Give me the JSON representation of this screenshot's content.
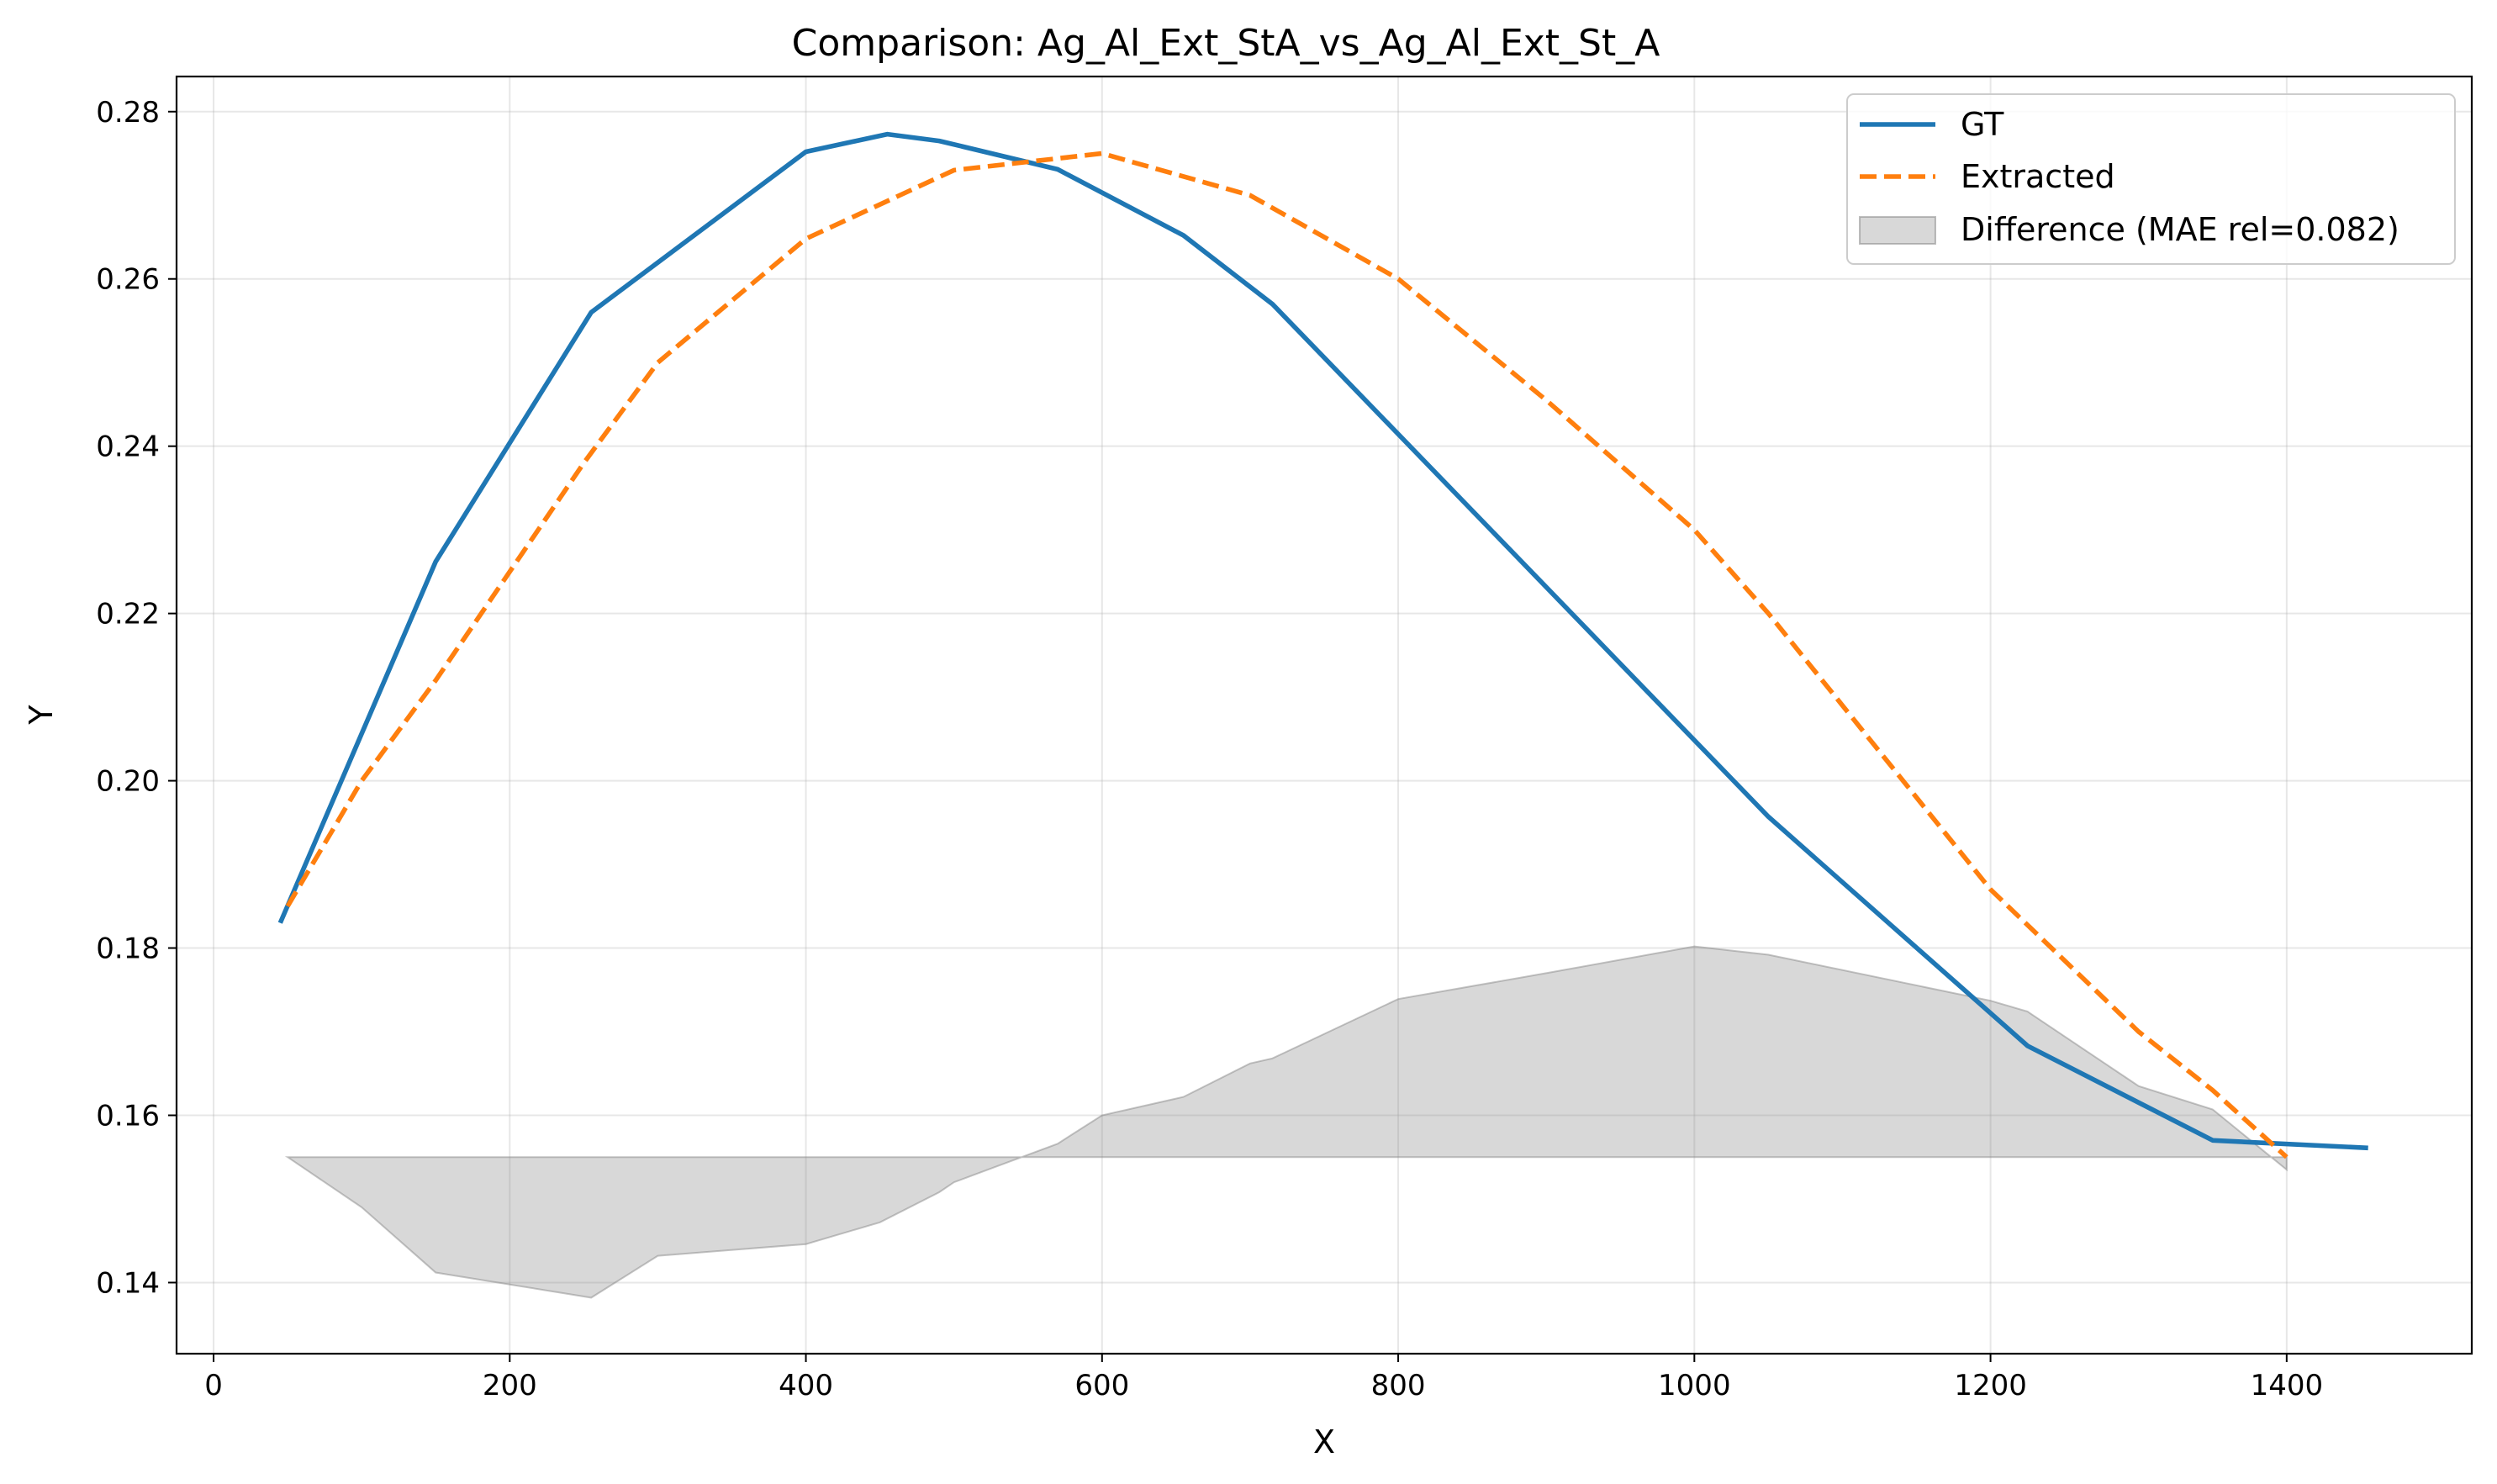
{
  "chart_data": {
    "type": "line",
    "title": "Comparison: Ag_Al_Ext_StA_vs_Ag_Al_Ext_St_A",
    "xlabel": "X",
    "ylabel": "Y",
    "xlim": [
      -25,
      1525
    ],
    "ylim": [
      0.1315,
      0.2842
    ],
    "xticks": [
      0,
      200,
      400,
      600,
      800,
      1000,
      1200,
      1400
    ],
    "xtick_labels": [
      "0",
      "200",
      "400",
      "600",
      "800",
      "1000",
      "1200",
      "1400"
    ],
    "yticks": [
      0.14,
      0.16,
      0.18,
      0.2,
      0.22,
      0.24,
      0.26,
      0.28
    ],
    "ytick_labels": [
      "0.14",
      "0.16",
      "0.18",
      "0.20",
      "0.22",
      "0.24",
      "0.26",
      "0.28"
    ],
    "grid": true,
    "legend_position": "top-right",
    "series": [
      {
        "name": "GT",
        "color": "#1f77b4",
        "style": "solid",
        "x": [
          45,
          150,
          255,
          400,
          455,
          490,
          570,
          655,
          715,
          1050,
          1225,
          1350,
          1455
        ],
        "y": [
          0.183,
          0.2262,
          0.256,
          0.2752,
          0.2773,
          0.2765,
          0.2731,
          0.2652,
          0.257,
          0.1957,
          0.1683,
          0.157,
          0.1561
        ]
      },
      {
        "name": "Extracted",
        "color": "#ff7f0e",
        "style": "dashed",
        "x": [
          50,
          100,
          150,
          200,
          250,
          300,
          400,
          500,
          600,
          700,
          800,
          900,
          1000,
          1050,
          1100,
          1200,
          1300,
          1350,
          1400
        ],
        "y": [
          0.185,
          0.2,
          0.212,
          0.225,
          0.238,
          0.25,
          0.2648,
          0.273,
          0.275,
          0.27,
          0.26,
          0.2455,
          0.23,
          0.22,
          0.209,
          0.187,
          0.17,
          0.163,
          0.155
        ]
      }
    ],
    "difference": {
      "name": "Difference (MAE rel=0.082)",
      "color": "#7f7f7f",
      "baseline": 0.155,
      "x": [
        50,
        100,
        150,
        255,
        300,
        400,
        450,
        490,
        500,
        570,
        600,
        655,
        700,
        715,
        800,
        900,
        1000,
        1050,
        1200,
        1225,
        1300,
        1350,
        1400
      ],
      "y": [
        0.155,
        0.149,
        0.1412,
        0.1382,
        0.1432,
        0.1446,
        0.1472,
        0.1508,
        0.152,
        0.1566,
        0.16,
        0.1622,
        0.1662,
        0.1668,
        0.1739,
        0.177,
        0.1802,
        0.1792,
        0.1737,
        0.1724,
        0.1635,
        0.1607,
        0.1535
      ]
    }
  }
}
